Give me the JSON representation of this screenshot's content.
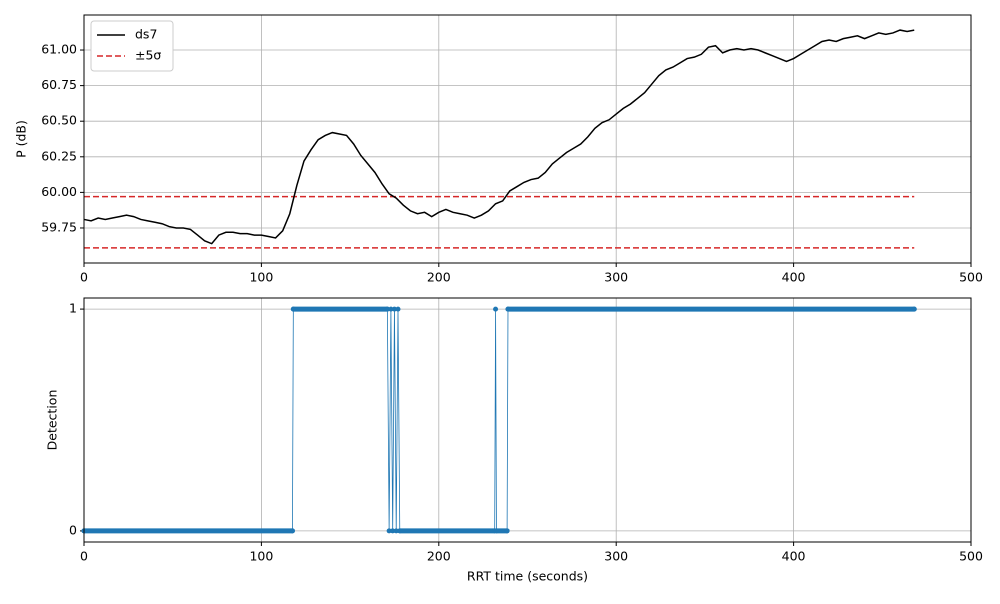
{
  "chart_data": [
    {
      "type": "line",
      "ylabel": "P (dB)",
      "xlim": [
        0,
        500
      ],
      "xticks": [
        0,
        100,
        200,
        300,
        400,
        500
      ],
      "ylim": [
        59.504,
        61.246
      ],
      "yticks": [
        {
          "value": 59.75,
          "label": "59.75"
        },
        {
          "value": 60,
          "label": "60.00"
        },
        {
          "value": 60.25,
          "label": "60.25"
        },
        {
          "value": 60.5,
          "label": "60.50"
        },
        {
          "value": 60.75,
          "label": "60.75"
        },
        {
          "value": 61,
          "label": "61.00"
        }
      ],
      "grid": true,
      "legend": "upper left",
      "series": [
        {
          "name": "ds7",
          "color": "#000000",
          "x": [
            0,
            4,
            8,
            12,
            16,
            20,
            24,
            28,
            32,
            36,
            40,
            44,
            48,
            52,
            56,
            60,
            64,
            68,
            72,
            76,
            80,
            84,
            88,
            92,
            96,
            100,
            104,
            108,
            112,
            116,
            120,
            124,
            128,
            132,
            136,
            140,
            144,
            148,
            152,
            156,
            160,
            164,
            168,
            172,
            176,
            180,
            184,
            188,
            192,
            196,
            200,
            204,
            208,
            212,
            216,
            220,
            224,
            228,
            232,
            236,
            240,
            244,
            248,
            252,
            256,
            260,
            264,
            268,
            272,
            276,
            280,
            284,
            288,
            292,
            296,
            300,
            304,
            308,
            312,
            316,
            320,
            324,
            328,
            332,
            336,
            340,
            344,
            348,
            352,
            356,
            360,
            364,
            368,
            372,
            376,
            380,
            384,
            388,
            392,
            396,
            400,
            404,
            408,
            412,
            416,
            420,
            424,
            428,
            432,
            436,
            440,
            444,
            448,
            452,
            456,
            460,
            464,
            468
          ],
          "values": [
            59.81,
            59.8,
            59.82,
            59.81,
            59.82,
            59.83,
            59.84,
            59.83,
            59.81,
            59.8,
            59.79,
            59.78,
            59.76,
            59.75,
            59.75,
            59.74,
            59.7,
            59.66,
            59.64,
            59.7,
            59.72,
            59.72,
            59.71,
            59.71,
            59.7,
            59.7,
            59.69,
            59.68,
            59.73,
            59.85,
            60.05,
            60.22,
            60.3,
            60.37,
            60.4,
            60.42,
            60.41,
            60.4,
            60.34,
            60.26,
            60.2,
            60.14,
            60.06,
            59.99,
            59.96,
            59.91,
            59.87,
            59.85,
            59.86,
            59.83,
            59.86,
            59.88,
            59.86,
            59.85,
            59.84,
            59.82,
            59.84,
            59.87,
            59.92,
            59.94,
            60.01,
            60.04,
            60.07,
            60.09,
            60.1,
            60.14,
            60.2,
            60.24,
            60.28,
            60.31,
            60.34,
            60.39,
            60.45,
            60.49,
            60.51,
            60.55,
            60.59,
            60.62,
            60.66,
            60.7,
            60.76,
            60.82,
            60.86,
            60.88,
            60.91,
            60.94,
            60.95,
            60.97,
            61.02,
            61.03,
            60.98,
            61.0,
            61.01,
            61.0,
            61.01,
            61.0,
            60.98,
            60.96,
            60.94,
            60.92,
            60.94,
            60.97,
            61.0,
            61.03,
            61.06,
            61.07,
            61.06,
            61.08,
            61.09,
            61.1,
            61.08,
            61.1,
            61.12,
            61.11,
            61.12,
            61.14,
            61.13,
            61.14
          ]
        }
      ],
      "hlines": {
        "name": "±5σ",
        "color": "#d62728",
        "values": [
          59.97,
          59.61
        ],
        "xrange": [
          0,
          468
        ]
      }
    },
    {
      "type": "line",
      "xlabel": "RRT time (seconds)",
      "ylabel": "Detection",
      "xlim": [
        0,
        500
      ],
      "xticks": [
        0,
        100,
        200,
        300,
        400,
        500
      ],
      "ylim": [
        -0.05,
        1.05
      ],
      "yticks": [
        0,
        1
      ],
      "grid": true,
      "markers": true,
      "series": [
        {
          "color": "#1f77b4",
          "x": [
            0,
            117.5,
            118,
            171,
            172,
            173,
            174,
            175,
            176,
            177,
            178,
            231.5,
            232,
            232.5,
            238.5,
            239,
            468
          ],
          "values": [
            0,
            0,
            1,
            1,
            0,
            1,
            0,
            1,
            0,
            1,
            0,
            0,
            1,
            0,
            0,
            1,
            1
          ]
        }
      ]
    }
  ]
}
